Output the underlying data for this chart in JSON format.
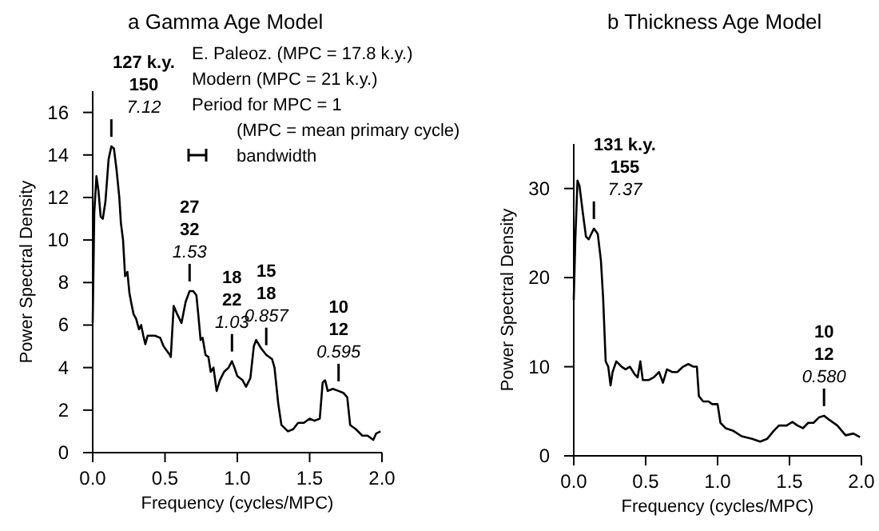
{
  "chart_data": [
    {
      "type": "line",
      "title": "a Gamma Age Model",
      "xlabel": "Frequency (cycles/MPC)",
      "ylabel": "Power Spectral Density",
      "xlim": [
        0,
        2
      ],
      "ylim": [
        0,
        17
      ],
      "xticks": [
        {
          "value": 0,
          "label": "0.0"
        },
        {
          "value": 0.5,
          "label": "0.5"
        },
        {
          "value": 1,
          "label": "1.0"
        },
        {
          "value": 1.5,
          "label": "1.5"
        },
        {
          "value": 2,
          "label": "2.0"
        }
      ],
      "yticks": [
        0,
        2,
        4,
        6,
        8,
        10,
        12,
        14,
        16
      ],
      "grid": false,
      "series": [
        {
          "color": "#000000",
          "x": [
            0,
            0.011,
            0.026,
            0.04,
            0.055,
            0.07,
            0.088,
            0.11,
            0.129,
            0.147,
            0.165,
            0.184,
            0.195,
            0.21,
            0.224,
            0.24,
            0.254,
            0.268,
            0.283,
            0.3,
            0.32,
            0.335,
            0.35,
            0.364,
            0.38,
            0.43,
            0.467,
            0.49,
            0.533,
            0.54,
            0.56,
            0.585,
            0.614,
            0.643,
            0.67,
            0.695,
            0.717,
            0.73,
            0.746,
            0.76,
            0.78,
            0.8,
            0.816,
            0.835,
            0.857,
            0.879,
            0.908,
            0.94,
            0.963,
            0.98,
            1.0,
            1.037,
            1.06,
            1.09,
            1.114,
            1.13,
            1.165,
            1.2,
            1.24,
            1.257,
            1.283,
            1.305,
            1.35,
            1.386,
            1.42,
            1.46,
            1.5,
            1.533,
            1.57,
            1.59,
            1.607,
            1.625,
            1.66,
            1.7,
            1.735,
            1.76,
            1.78,
            1.82,
            1.864,
            1.9,
            1.94,
            1.96,
            1.99
          ],
          "values": [
            6.1,
            11.3,
            13.0,
            12.3,
            11.1,
            11.0,
            11.8,
            13.8,
            14.4,
            14.3,
            13.3,
            12.0,
            10.8,
            10.0,
            8.3,
            8.5,
            7.5,
            7.0,
            6.5,
            6.3,
            5.8,
            6.0,
            5.5,
            5.1,
            5.5,
            5.5,
            5.4,
            5.0,
            4.6,
            4.5,
            6.9,
            6.5,
            6.1,
            7.1,
            7.6,
            7.6,
            7.4,
            6.5,
            5.3,
            5.4,
            4.6,
            4.5,
            3.8,
            4.0,
            2.9,
            3.4,
            3.8,
            4.0,
            4.3,
            4.0,
            3.6,
            3.4,
            3.1,
            3.5,
            5.0,
            5.3,
            4.9,
            4.6,
            4.4,
            4.0,
            2.3,
            1.3,
            1.0,
            1.1,
            1.4,
            1.4,
            1.6,
            1.5,
            1.6,
            3.3,
            3.4,
            2.9,
            3.0,
            2.9,
            2.8,
            2.6,
            1.3,
            1.1,
            0.8,
            0.8,
            0.6,
            0.9,
            1.0
          ]
        }
      ],
      "annotations": [
        {
          "text": "127 k.y.\n150\n7.12",
          "x": 0.129,
          "y": 14.4
        },
        {
          "text": "27\n32\n1.53",
          "x": 0.67,
          "y": 7.6
        },
        {
          "text": "18\n22\n1.03",
          "x": 0.963,
          "y": 4.3
        },
        {
          "text": "15\n18\n0.857",
          "x": 1.2,
          "y": 4.6
        },
        {
          "text": "10\n12\n0.595",
          "x": 1.7,
          "y": 2.9
        },
        "E. Paleoz. (MPC = 17.8 k.y.)",
        "Modern (MPC = 21 k.y.)",
        "Period for MPC = 1",
        "(MPC = mean primary cycle)",
        "bandwidth"
      ]
    },
    {
      "type": "line",
      "title": "b Thickness Age Model",
      "xlabel": "Frequency (cycles/MPC)",
      "ylabel": "Power Spectral Density",
      "xlim": [
        0,
        2
      ],
      "ylim": [
        0,
        35
      ],
      "xticks": [
        {
          "value": 0,
          "label": "0.0"
        },
        {
          "value": 0.5,
          "label": "0.5"
        },
        {
          "value": 1,
          "label": "1.0"
        },
        {
          "value": 1.5,
          "label": "1.5"
        },
        {
          "value": 2,
          "label": "2.0"
        }
      ],
      "yticks": [
        0,
        10,
        20,
        30
      ],
      "grid": false,
      "series": [
        {
          "color": "#000000",
          "x": [
            0,
            0.011,
            0.026,
            0.04,
            0.063,
            0.085,
            0.104,
            0.122,
            0.14,
            0.167,
            0.189,
            0.204,
            0.222,
            0.24,
            0.256,
            0.27,
            0.296,
            0.333,
            0.36,
            0.39,
            0.426,
            0.444,
            0.463,
            0.48,
            0.52,
            0.556,
            0.593,
            0.62,
            0.648,
            0.685,
            0.72,
            0.76,
            0.796,
            0.833,
            0.856,
            0.87,
            0.9,
            0.937,
            0.963,
            1.0,
            1.02,
            1.056,
            1.11,
            1.167,
            1.24,
            1.296,
            1.344,
            1.39,
            1.426,
            1.48,
            1.52,
            1.556,
            1.593,
            1.63,
            1.667,
            1.704,
            1.74,
            1.78,
            1.833,
            1.89,
            1.944,
            1.99
          ],
          "values": [
            17.5,
            24.3,
            30.9,
            30.3,
            27.3,
            24.6,
            24.3,
            24.9,
            25.5,
            24.9,
            21.9,
            17.8,
            10.6,
            10.0,
            7.9,
            9.4,
            10.6,
            10.0,
            9.7,
            10.0,
            9.1,
            8.8,
            10.6,
            8.5,
            8.5,
            8.8,
            9.4,
            8.2,
            9.7,
            9.4,
            9.4,
            10.0,
            10.3,
            10.0,
            10.0,
            6.7,
            6.1,
            6.1,
            5.8,
            5.8,
            3.7,
            3.1,
            2.8,
            2.2,
            1.9,
            1.6,
            1.9,
            2.8,
            3.4,
            3.4,
            3.8,
            3.4,
            3.1,
            3.7,
            3.7,
            4.3,
            4.5,
            4.0,
            3.4,
            2.3,
            2.5,
            2.1
          ]
        }
      ],
      "annotations": [
        {
          "text": "131 k.y.\n155\n7.37",
          "x": 0.14,
          "y": 25.5
        },
        {
          "text": "10\n12\n0.580",
          "x": 1.74,
          "y": 4.5
        }
      ]
    }
  ]
}
